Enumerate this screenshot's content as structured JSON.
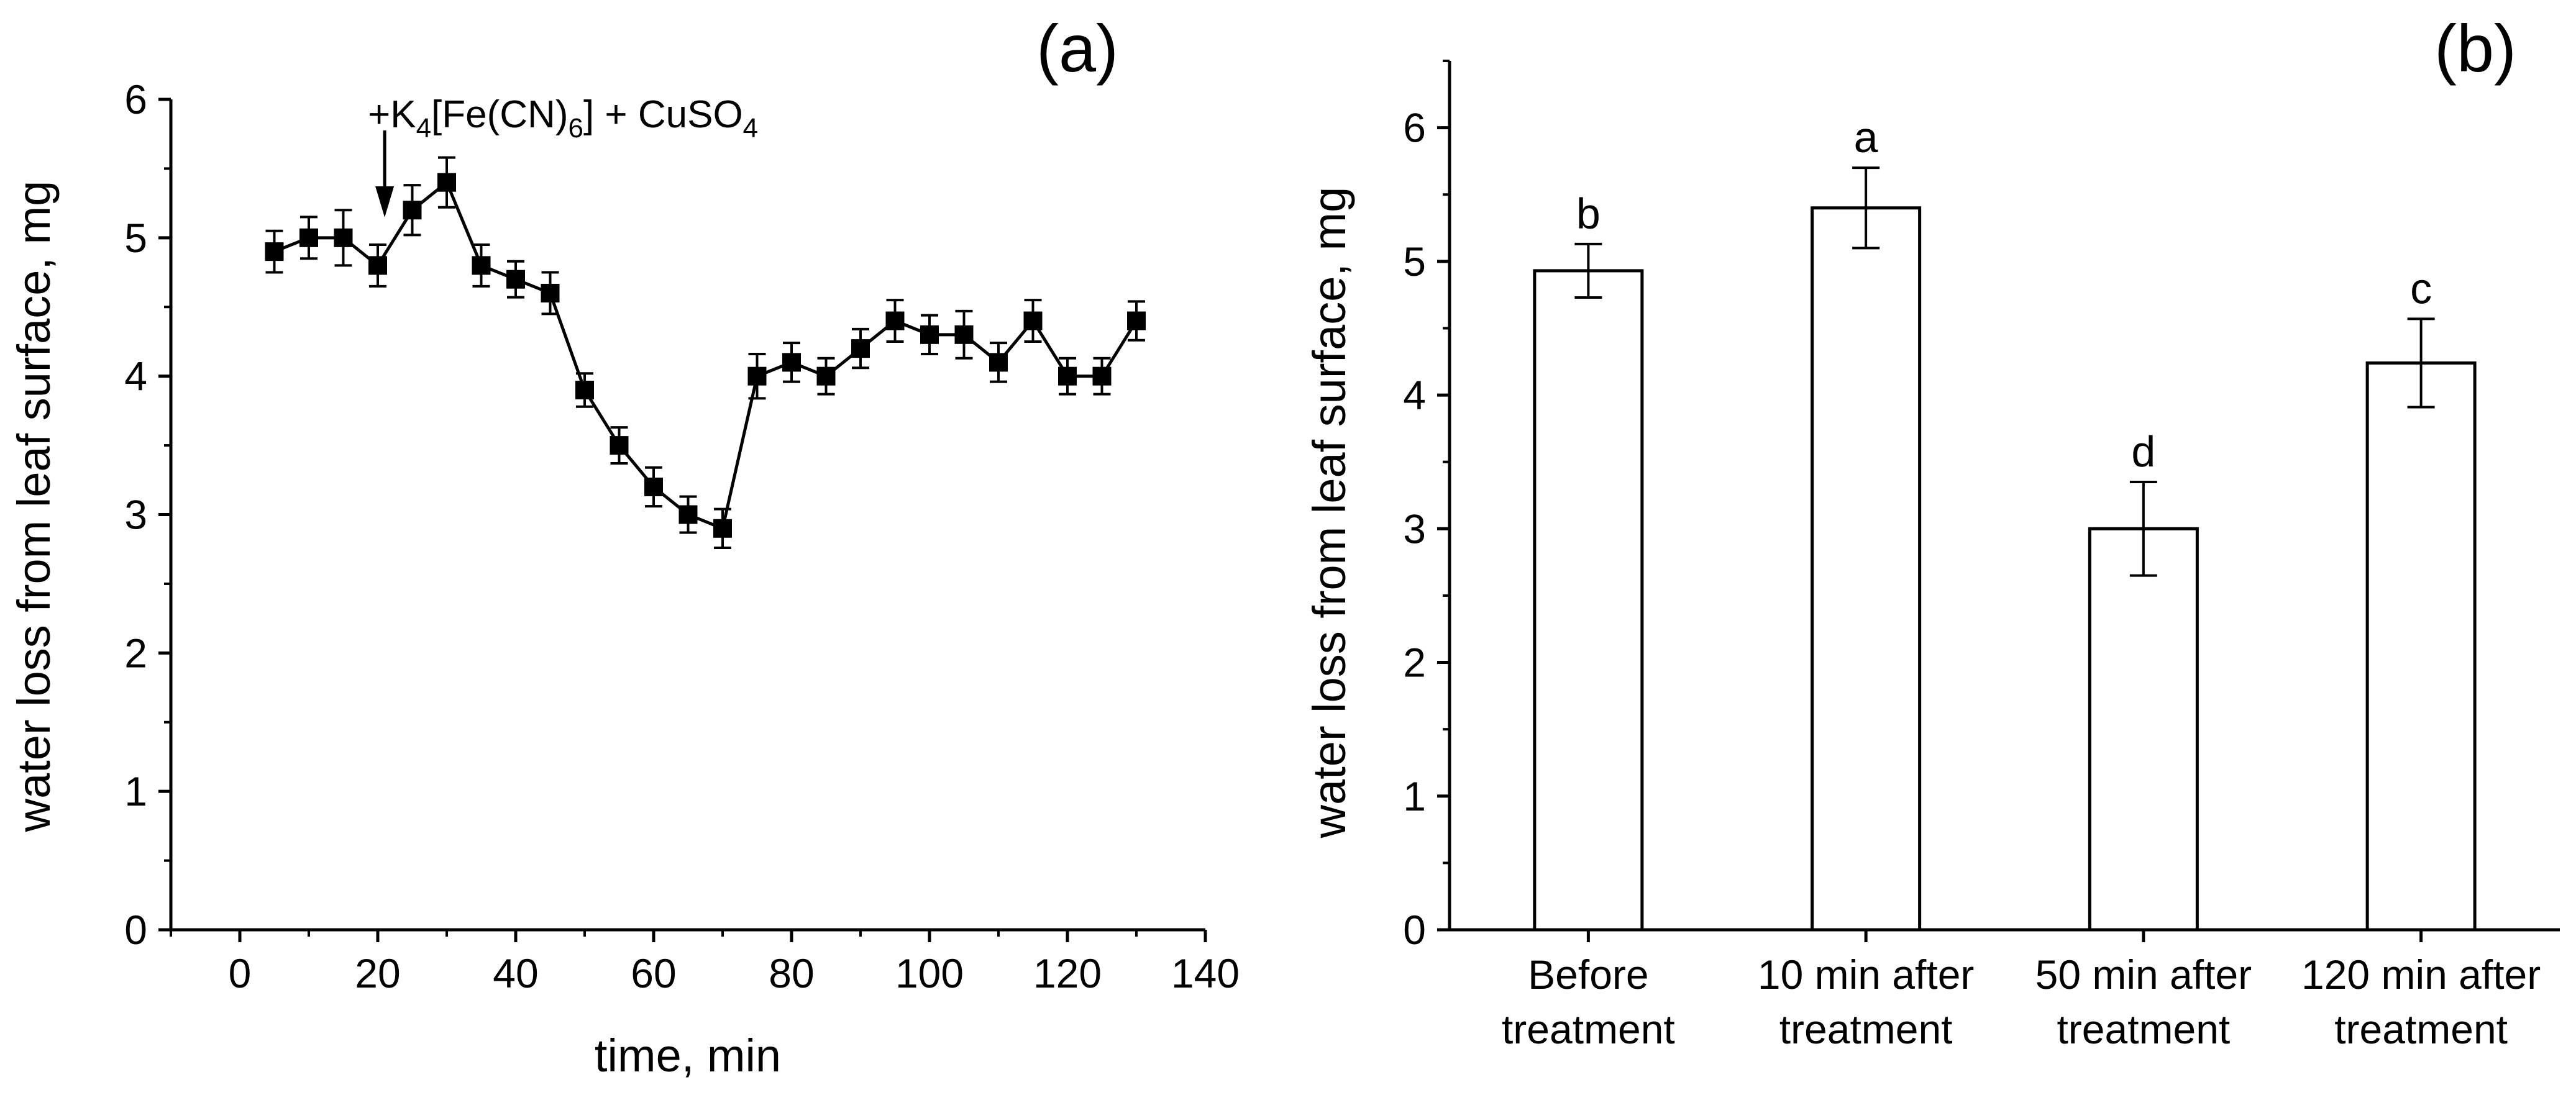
{
  "chart_data": [
    {
      "panel": "(a)",
      "type": "line",
      "xlabel": "time, min",
      "ylabel": "water loss from leaf surface, mg",
      "xlim": [
        -10,
        140
      ],
      "ylim": [
        0,
        6
      ],
      "xticks": [
        "0",
        "20",
        "40",
        "60",
        "80",
        "100",
        "120",
        "140"
      ],
      "yticks": [
        "0",
        "1",
        "2",
        "3",
        "4",
        "5",
        "6"
      ],
      "annotation": {
        "prefix": "+K",
        "sub1": "4",
        "mid": "[Fe(CN)",
        "sub2": "6",
        "mid2": "] + CuSO",
        "sub3": "4",
        "x": 21
      },
      "series": [
        {
          "name": "water loss",
          "x": [
            5,
            10,
            15,
            20,
            25,
            30,
            35,
            40,
            45,
            50,
            55,
            60,
            65,
            70,
            75,
            80,
            85,
            90,
            95,
            100,
            105,
            110,
            115,
            120,
            125,
            130
          ],
          "y": [
            4.9,
            5.0,
            5.0,
            4.8,
            5.2,
            5.4,
            4.8,
            4.7,
            4.6,
            3.9,
            3.5,
            3.2,
            3.0,
            2.9,
            4.0,
            4.1,
            4.0,
            4.2,
            4.4,
            4.3,
            4.3,
            4.1,
            4.4,
            4.0,
            4.0,
            4.4
          ],
          "err": [
            0.15,
            0.15,
            0.2,
            0.15,
            0.18,
            0.18,
            0.15,
            0.13,
            0.15,
            0.12,
            0.13,
            0.14,
            0.13,
            0.14,
            0.16,
            0.14,
            0.13,
            0.14,
            0.15,
            0.14,
            0.17,
            0.14,
            0.15,
            0.13,
            0.13,
            0.14
          ]
        }
      ]
    },
    {
      "panel": "(b)",
      "type": "bar",
      "xlabel": "",
      "ylabel": "water loss from leaf surface, mg",
      "ylim": [
        0,
        6.5
      ],
      "yticks": [
        "0",
        "1",
        "2",
        "3",
        "4",
        "5",
        "6"
      ],
      "categories": [
        [
          "Before",
          "treatment"
        ],
        [
          "10 min after",
          "treatment"
        ],
        [
          "50 min after",
          "treatment"
        ],
        [
          "120 min after",
          "treatment"
        ]
      ],
      "values": [
        4.93,
        5.4,
        3.0,
        4.24
      ],
      "err": [
        0.2,
        0.3,
        0.35,
        0.33
      ],
      "significance": [
        "b",
        "a",
        "d",
        "c"
      ]
    }
  ]
}
